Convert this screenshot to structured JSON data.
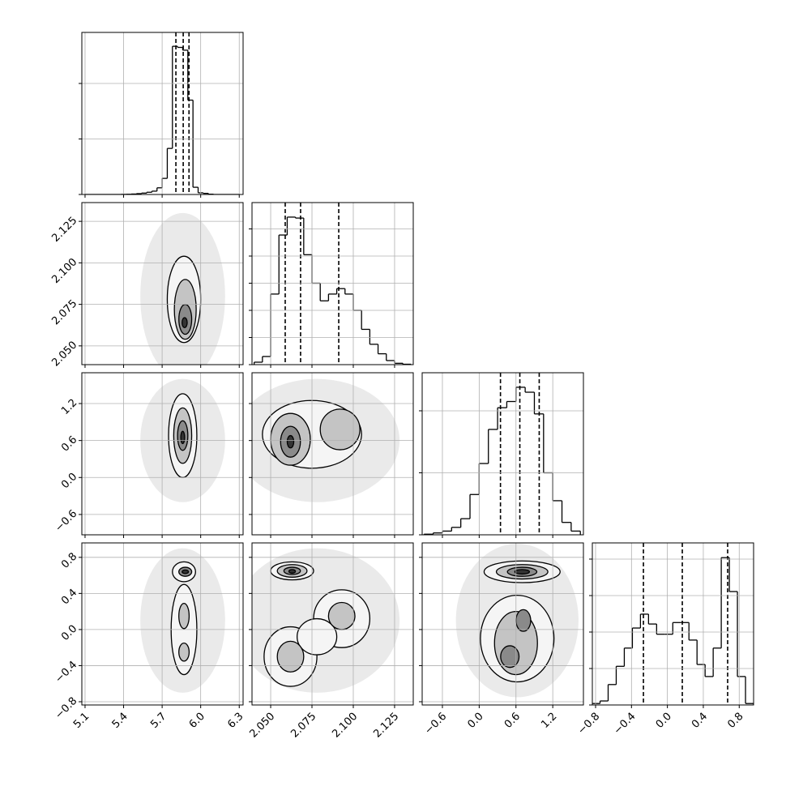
{
  "chart_data": {
    "type": "corner",
    "grid": true,
    "level_colors": [
      "#dcdcdc",
      "#f5f5f5",
      "#c4c4c4",
      "#8a8a8a",
      "#333333"
    ],
    "params": [
      {
        "lim": [
          5.075,
          6.33
        ],
        "ticks": [
          5.1,
          5.4,
          5.7,
          {
            "value": 6.0,
            "label": "6.0"
          },
          6.3
        ]
      },
      {
        "lim": [
          2.0387,
          2.1363
        ],
        "ticks": [
          {
            "value": 2.05,
            "label": "2.050"
          },
          {
            "value": 2.075,
            "label": "2.075"
          },
          {
            "value": 2.1,
            "label": "2.100"
          },
          {
            "value": 2.125,
            "label": "2.125"
          }
        ]
      },
      {
        "lim": [
          -0.93,
          1.7
        ],
        "ticks": [
          {
            "value": -0.6,
            "label": "−0.6"
          },
          {
            "value": 0,
            "label": "0.0"
          },
          0.6,
          1.2
        ]
      },
      {
        "lim": [
          -0.836,
          0.96
        ],
        "ticks": [
          {
            "value": -0.8,
            "label": "−0.8"
          },
          {
            "value": -0.4,
            "label": "−0.4"
          },
          {
            "value": 0,
            "label": "0.0"
          },
          0.4,
          0.8
        ]
      }
    ],
    "histograms": [
      {
        "ylim": [
          0,
          2920
        ],
        "yticks": [
          0,
          1000,
          2000
        ],
        "bins": [
          5.1,
          5.14,
          5.18,
          5.22,
          5.26,
          5.3,
          5.34,
          5.38,
          5.42,
          5.46,
          5.5,
          5.54,
          5.58,
          5.62,
          5.66,
          5.7,
          5.74,
          5.78,
          5.82,
          5.86,
          5.9,
          5.94,
          5.98,
          6.02,
          6.06,
          6.1,
          6.14,
          6.18,
          6.22,
          6.26,
          6.3
        ],
        "counts": [
          0,
          0,
          0,
          0,
          0,
          0,
          0,
          2,
          4,
          8,
          15,
          25,
          40,
          60,
          120,
          290,
          830,
          2670,
          2650,
          2600,
          1700,
          130,
          30,
          20,
          5,
          0,
          0,
          0,
          0,
          0
        ],
        "quantiles": [
          5.807,
          5.864,
          5.909
        ]
      },
      {
        "ylim": [
          0,
          1194
        ],
        "yticks": [
          0,
          200,
          400,
          600,
          800,
          1000
        ],
        "bins": [
          2.04,
          2.045,
          2.05,
          2.055,
          2.06,
          2.065,
          2.07,
          2.075,
          2.08,
          2.085,
          2.09,
          2.095,
          2.1,
          2.105,
          2.11,
          2.115,
          2.12,
          2.125,
          2.13,
          2.135
        ],
        "counts": [
          18,
          60,
          520,
          955,
          1087,
          1080,
          810,
          600,
          470,
          520,
          560,
          520,
          400,
          260,
          150,
          80,
          30,
          10,
          3
        ],
        "quantiles": [
          2.0588,
          2.0681,
          2.0912
        ]
      },
      {
        "ylim": [
          0,
          2614
        ],
        "yticks": [
          0,
          1000,
          2000
        ],
        "bins": [
          -0.9,
          -0.75,
          -0.6,
          -0.45,
          -0.3,
          -0.15,
          0,
          0.15,
          0.3,
          0.45,
          0.6,
          0.75,
          0.9,
          1.05,
          1.2,
          1.35,
          1.5,
          1.65
        ],
        "counts": [
          10,
          30,
          60,
          120,
          260,
          650,
          1150,
          1700,
          2050,
          2150,
          2380,
          2300,
          1950,
          1000,
          550,
          200,
          60
        ],
        "quantiles": [
          0.347,
          0.663,
          0.979
        ]
      },
      {
        "ylim": [
          0,
          2222
        ],
        "yticks": [
          0,
          500,
          1000,
          1500,
          2000
        ],
        "bins": [
          -0.84,
          -0.75,
          -0.66,
          -0.57,
          -0.48,
          -0.39,
          -0.3,
          -0.21,
          -0.12,
          -0.03,
          0.06,
          0.15,
          0.24,
          0.33,
          0.42,
          0.51,
          0.6,
          0.69,
          0.78,
          0.87,
          0.96
        ],
        "counts": [
          20,
          55,
          280,
          530,
          780,
          1055,
          1245,
          1110,
          970,
          970,
          1130,
          1130,
          890,
          555,
          390,
          780,
          2020,
          1555,
          390,
          20
        ],
        "quantiles": [
          -0.267,
          0.166,
          0.671
        ]
      }
    ],
    "panels": [
      {
        "x": 0,
        "y": 1,
        "contours": [
          {
            "level": 0,
            "cx": 5.86,
            "cy": 2.08,
            "rx": 0.33,
            "ry": 0.05
          },
          {
            "level": 1,
            "cx": 5.87,
            "cy": 2.078,
            "rx": 0.13,
            "ry": 0.026
          },
          {
            "level": 2,
            "cx": 5.88,
            "cy": 2.072,
            "rx": 0.085,
            "ry": 0.018
          },
          {
            "level": 3,
            "cx": 5.88,
            "cy": 2.066,
            "rx": 0.05,
            "ry": 0.009
          },
          {
            "level": 4,
            "cx": 5.875,
            "cy": 2.064,
            "rx": 0.02,
            "ry": 0.003
          }
        ]
      },
      {
        "x": 0,
        "y": 2,
        "contours": [
          {
            "level": 0,
            "cx": 5.86,
            "cy": 0.6,
            "rx": 0.33,
            "ry": 1.0
          },
          {
            "level": 1,
            "cx": 5.86,
            "cy": 0.68,
            "rx": 0.11,
            "ry": 0.68
          },
          {
            "level": 2,
            "cx": 5.86,
            "cy": 0.68,
            "rx": 0.07,
            "ry": 0.45
          },
          {
            "level": 3,
            "cx": 5.86,
            "cy": 0.68,
            "rx": 0.04,
            "ry": 0.24
          },
          {
            "level": 4,
            "cx": 5.86,
            "cy": 0.65,
            "rx": 0.015,
            "ry": 0.1
          }
        ]
      },
      {
        "x": 1,
        "y": 2,
        "contours": [
          {
            "level": 0,
            "cx": 2.078,
            "cy": 0.6,
            "rx": 0.05,
            "ry": 1.0
          },
          {
            "level": 1,
            "cx": 2.075,
            "cy": 0.7,
            "rx": 0.03,
            "ry": 0.55
          },
          {
            "level": 2,
            "cx": 2.092,
            "cy": 0.78,
            "rx": 0.012,
            "ry": 0.33
          },
          {
            "level": 2,
            "cx": 2.062,
            "cy": 0.62,
            "rx": 0.012,
            "ry": 0.42
          },
          {
            "level": 3,
            "cx": 2.062,
            "cy": 0.58,
            "rx": 0.006,
            "ry": 0.25
          },
          {
            "level": 4,
            "cx": 2.062,
            "cy": 0.58,
            "rx": 0.002,
            "ry": 0.1
          }
        ]
      },
      {
        "x": 0,
        "y": 3,
        "contours": [
          {
            "level": 0,
            "cx": 5.86,
            "cy": 0.1,
            "rx": 0.33,
            "ry": 0.8
          },
          {
            "level": 1,
            "cx": 5.87,
            "cy": 0.0,
            "rx": 0.1,
            "ry": 0.5
          },
          {
            "level": 1,
            "cx": 5.87,
            "cy": 0.64,
            "rx": 0.09,
            "ry": 0.11
          },
          {
            "level": 2,
            "cx": 5.87,
            "cy": 0.15,
            "rx": 0.04,
            "ry": 0.14
          },
          {
            "level": 2,
            "cx": 5.87,
            "cy": -0.25,
            "rx": 0.04,
            "ry": 0.1
          },
          {
            "level": 3,
            "cx": 5.88,
            "cy": 0.64,
            "rx": 0.05,
            "ry": 0.05
          },
          {
            "level": 4,
            "cx": 5.88,
            "cy": 0.64,
            "rx": 0.025,
            "ry": 0.02
          }
        ]
      },
      {
        "x": 1,
        "y": 3,
        "contours": [
          {
            "level": 0,
            "cx": 2.078,
            "cy": 0.1,
            "rx": 0.05,
            "ry": 0.8
          },
          {
            "level": 1,
            "cx": 2.062,
            "cy": -0.3,
            "rx": 0.016,
            "ry": 0.33
          },
          {
            "level": 1,
            "cx": 2.093,
            "cy": 0.12,
            "rx": 0.017,
            "ry": 0.32
          },
          {
            "level": 1,
            "cx": 2.078,
            "cy": -0.08,
            "rx": 0.012,
            "ry": 0.2
          },
          {
            "level": 1,
            "cx": 2.063,
            "cy": 0.65,
            "rx": 0.013,
            "ry": 0.1
          },
          {
            "level": 2,
            "cx": 2.062,
            "cy": -0.3,
            "rx": 0.008,
            "ry": 0.17
          },
          {
            "level": 2,
            "cx": 2.093,
            "cy": 0.15,
            "rx": 0.008,
            "ry": 0.15
          },
          {
            "level": 2,
            "cx": 2.063,
            "cy": 0.65,
            "rx": 0.009,
            "ry": 0.07
          },
          {
            "level": 3,
            "cx": 2.063,
            "cy": 0.65,
            "rx": 0.005,
            "ry": 0.04
          },
          {
            "level": 4,
            "cx": 2.063,
            "cy": 0.645,
            "rx": 0.002,
            "ry": 0.02
          }
        ]
      },
      {
        "x": 2,
        "y": 3,
        "contours": [
          {
            "level": 0,
            "cx": 0.62,
            "cy": 0.1,
            "rx": 1.0,
            "ry": 0.85
          },
          {
            "level": 1,
            "cx": 0.62,
            "cy": -0.1,
            "rx": 0.6,
            "ry": 0.48
          },
          {
            "level": 1,
            "cx": 0.7,
            "cy": 0.64,
            "rx": 0.62,
            "ry": 0.12
          },
          {
            "level": 2,
            "cx": 0.6,
            "cy": -0.15,
            "rx": 0.35,
            "ry": 0.35
          },
          {
            "level": 2,
            "cx": 0.7,
            "cy": 0.64,
            "rx": 0.42,
            "ry": 0.08
          },
          {
            "level": 3,
            "cx": 0.5,
            "cy": -0.3,
            "rx": 0.15,
            "ry": 0.12
          },
          {
            "level": 3,
            "cx": 0.72,
            "cy": 0.1,
            "rx": 0.12,
            "ry": 0.12
          },
          {
            "level": 3,
            "cx": 0.7,
            "cy": 0.64,
            "rx": 0.24,
            "ry": 0.05
          },
          {
            "level": 4,
            "cx": 0.7,
            "cy": 0.64,
            "rx": 0.12,
            "ry": 0.025
          }
        ]
      }
    ]
  }
}
